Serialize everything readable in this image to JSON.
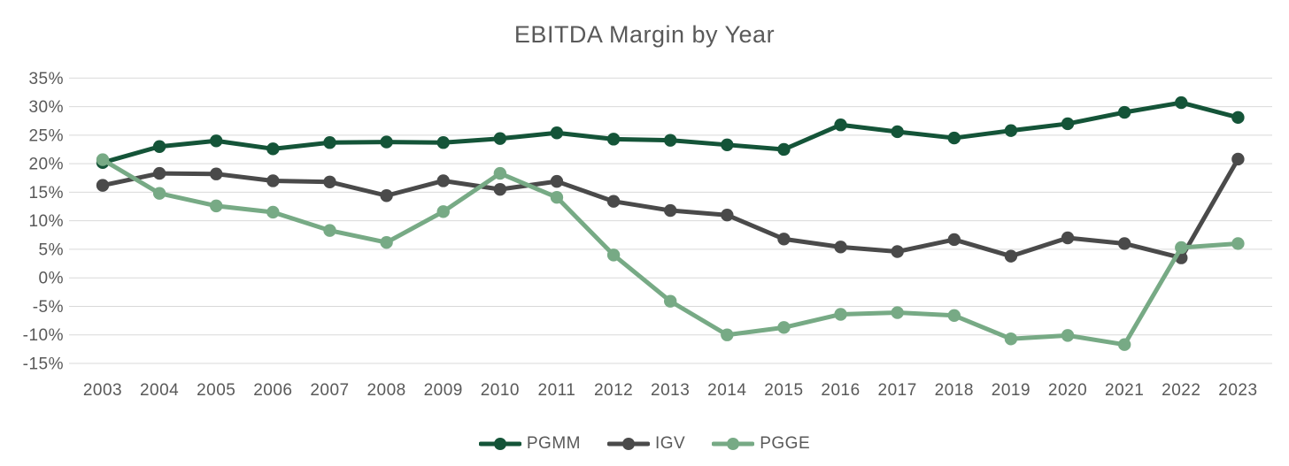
{
  "chart_data": {
    "type": "line",
    "title": "EBITDA Margin by Year",
    "x": [
      2003,
      2004,
      2005,
      2006,
      2007,
      2008,
      2009,
      2010,
      2011,
      2012,
      2013,
      2014,
      2015,
      2016,
      2017,
      2018,
      2019,
      2020,
      2021,
      2022,
      2023
    ],
    "series": [
      {
        "name": "PGMM",
        "color": "#145438",
        "values": [
          20.2,
          23.0,
          24.0,
          22.6,
          23.7,
          23.8,
          23.7,
          24.4,
          25.4,
          24.3,
          24.1,
          23.3,
          22.5,
          26.8,
          25.6,
          24.5,
          25.8,
          27.0,
          29.0,
          30.7,
          28.1
        ]
      },
      {
        "name": "IGV",
        "color": "#4a4a4a",
        "values": [
          16.2,
          18.3,
          18.2,
          17.0,
          16.8,
          14.4,
          17.0,
          15.5,
          16.9,
          13.4,
          11.8,
          11.0,
          6.8,
          5.4,
          4.6,
          6.7,
          3.8,
          7.0,
          6.0,
          3.5,
          20.8
        ]
      },
      {
        "name": "PGGE",
        "color": "#77aa85",
        "values": [
          20.7,
          14.8,
          12.6,
          11.5,
          8.3,
          6.2,
          11.6,
          18.3,
          14.1,
          4.0,
          -4.1,
          -10.0,
          -8.7,
          -6.4,
          -6.1,
          -6.6,
          -10.7,
          -10.1,
          -11.7,
          5.3,
          6.0
        ]
      }
    ],
    "ylim": [
      -15,
      35
    ],
    "ytick_step": 5,
    "ytick_labels": [
      "35%",
      "30%",
      "25%",
      "20%",
      "15%",
      "10%",
      "5%",
      "0%",
      "-5%",
      "-10%",
      "-15%"
    ],
    "xtick_labels": [
      "2003",
      "2004",
      "2005",
      "2006",
      "2007",
      "2008",
      "2009",
      "2010",
      "2011",
      "2012",
      "2013",
      "2014",
      "2015",
      "2016",
      "2017",
      "2018",
      "2019",
      "2020",
      "2021",
      "2022",
      "2023"
    ],
    "grid": "horizontal-only",
    "legend_position": "bottom-center",
    "text_color": "#595959",
    "grid_color": "#d9d9d9",
    "background_color": "#ffffff"
  }
}
